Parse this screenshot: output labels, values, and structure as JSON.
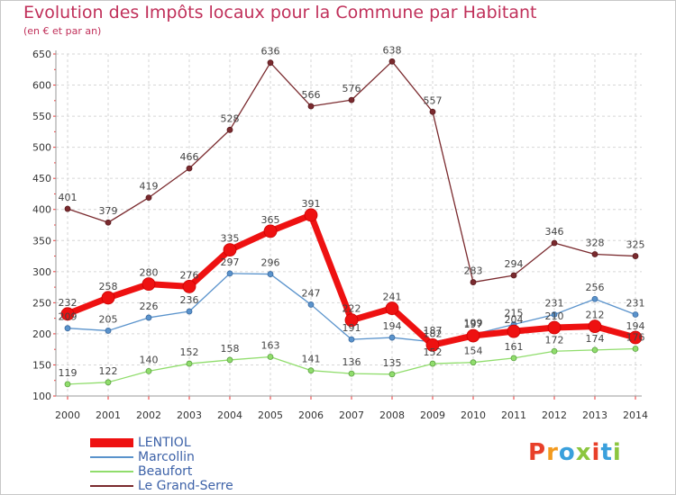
{
  "header": {
    "title": "Evolution des Impôts locaux pour la Commune par Habitant",
    "subtitle": "(en € et par an)"
  },
  "logo": {
    "text": "Proxiti",
    "colors": [
      "#e8402a",
      "#f39a1e",
      "#3aa0dc",
      "#8cc63f",
      "#e8402a",
      "#3aa0dc",
      "#8cc63f"
    ]
  },
  "chart_data": {
    "type": "line",
    "title": "Evolution des Impôts locaux pour la Commune par Habitant",
    "subtitle": "(en € et par an)",
    "xlabel": "",
    "ylabel": "",
    "ylim": [
      100,
      650
    ],
    "yticks": [
      100,
      150,
      200,
      250,
      300,
      350,
      400,
      450,
      500,
      550,
      600,
      650
    ],
    "grid": true,
    "legend_position": "bottom-left",
    "categories": [
      "2000",
      "2001",
      "2002",
      "2003",
      "2004",
      "2005",
      "2006",
      "2007",
      "2008",
      "2009",
      "2010",
      "2011",
      "2012",
      "2013",
      "2014"
    ],
    "series": [
      {
        "name": "Le Grand-Serre",
        "color": "#7a2a2e",
        "values": [
          401,
          379,
          419,
          466,
          528,
          636,
          566,
          576,
          638,
          557,
          283,
          294,
          346,
          328,
          325
        ]
      },
      {
        "name": "Beaufort",
        "color": "#90dd6c",
        "values": [
          119,
          122,
          140,
          152,
          158,
          163,
          141,
          136,
          135,
          152,
          154,
          161,
          172,
          174,
          176
        ]
      },
      {
        "name": "Marcollin",
        "color": "#5a93cc",
        "values": [
          209,
          205,
          226,
          236,
          297,
          296,
          247,
          191,
          194,
          187,
          199,
          215,
          231,
          256,
          231
        ]
      },
      {
        "name": "LENTIOL",
        "color": "#ee1111",
        "values": [
          232,
          258,
          280,
          276,
          335,
          365,
          391,
          222,
          241,
          182,
          197,
          204,
          210,
          212,
          194
        ]
      }
    ]
  }
}
